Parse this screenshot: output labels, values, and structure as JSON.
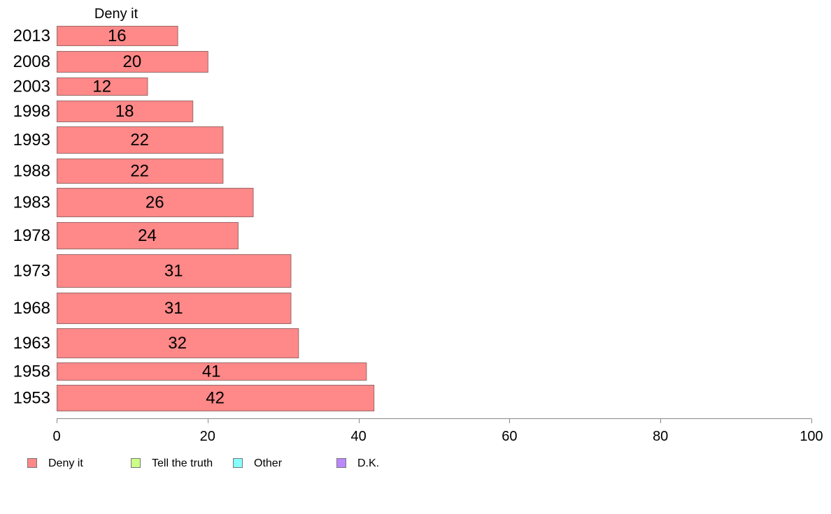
{
  "chart_data": {
    "type": "bar",
    "orientation": "horizontal",
    "panel_title": "Deny it",
    "categories": [
      "2013",
      "2008",
      "2003",
      "1998",
      "1993",
      "1988",
      "1983",
      "1978",
      "1973",
      "1968",
      "1963",
      "1958",
      "1953"
    ],
    "series": [
      {
        "name": "Deny it",
        "values": [
          16,
          20,
          12,
          18,
          22,
          22,
          26,
          24,
          31,
          31,
          32,
          41,
          42
        ]
      }
    ],
    "value_labels": [
      "16",
      "20",
      "12",
      "18",
      "22",
      "22",
      "26",
      "24",
      "31",
      "31",
      "32",
      "41",
      "42"
    ],
    "xlim": [
      0,
      100
    ],
    "xticks": [
      0,
      20,
      40,
      60,
      80,
      100
    ],
    "grid": false,
    "legend": {
      "placement": "bottom",
      "items": [
        {
          "label": "Deny it",
          "color": "#ff8888"
        },
        {
          "label": "Tell the truth",
          "color": "#ccff88"
        },
        {
          "label": "Other",
          "color": "#88ffff"
        },
        {
          "label": "D.K.",
          "color": "#bb88ff"
        }
      ]
    },
    "colors": {
      "bar": "#ff8888",
      "bar_border": "#9a6a6a",
      "axis": "#888888"
    }
  }
}
